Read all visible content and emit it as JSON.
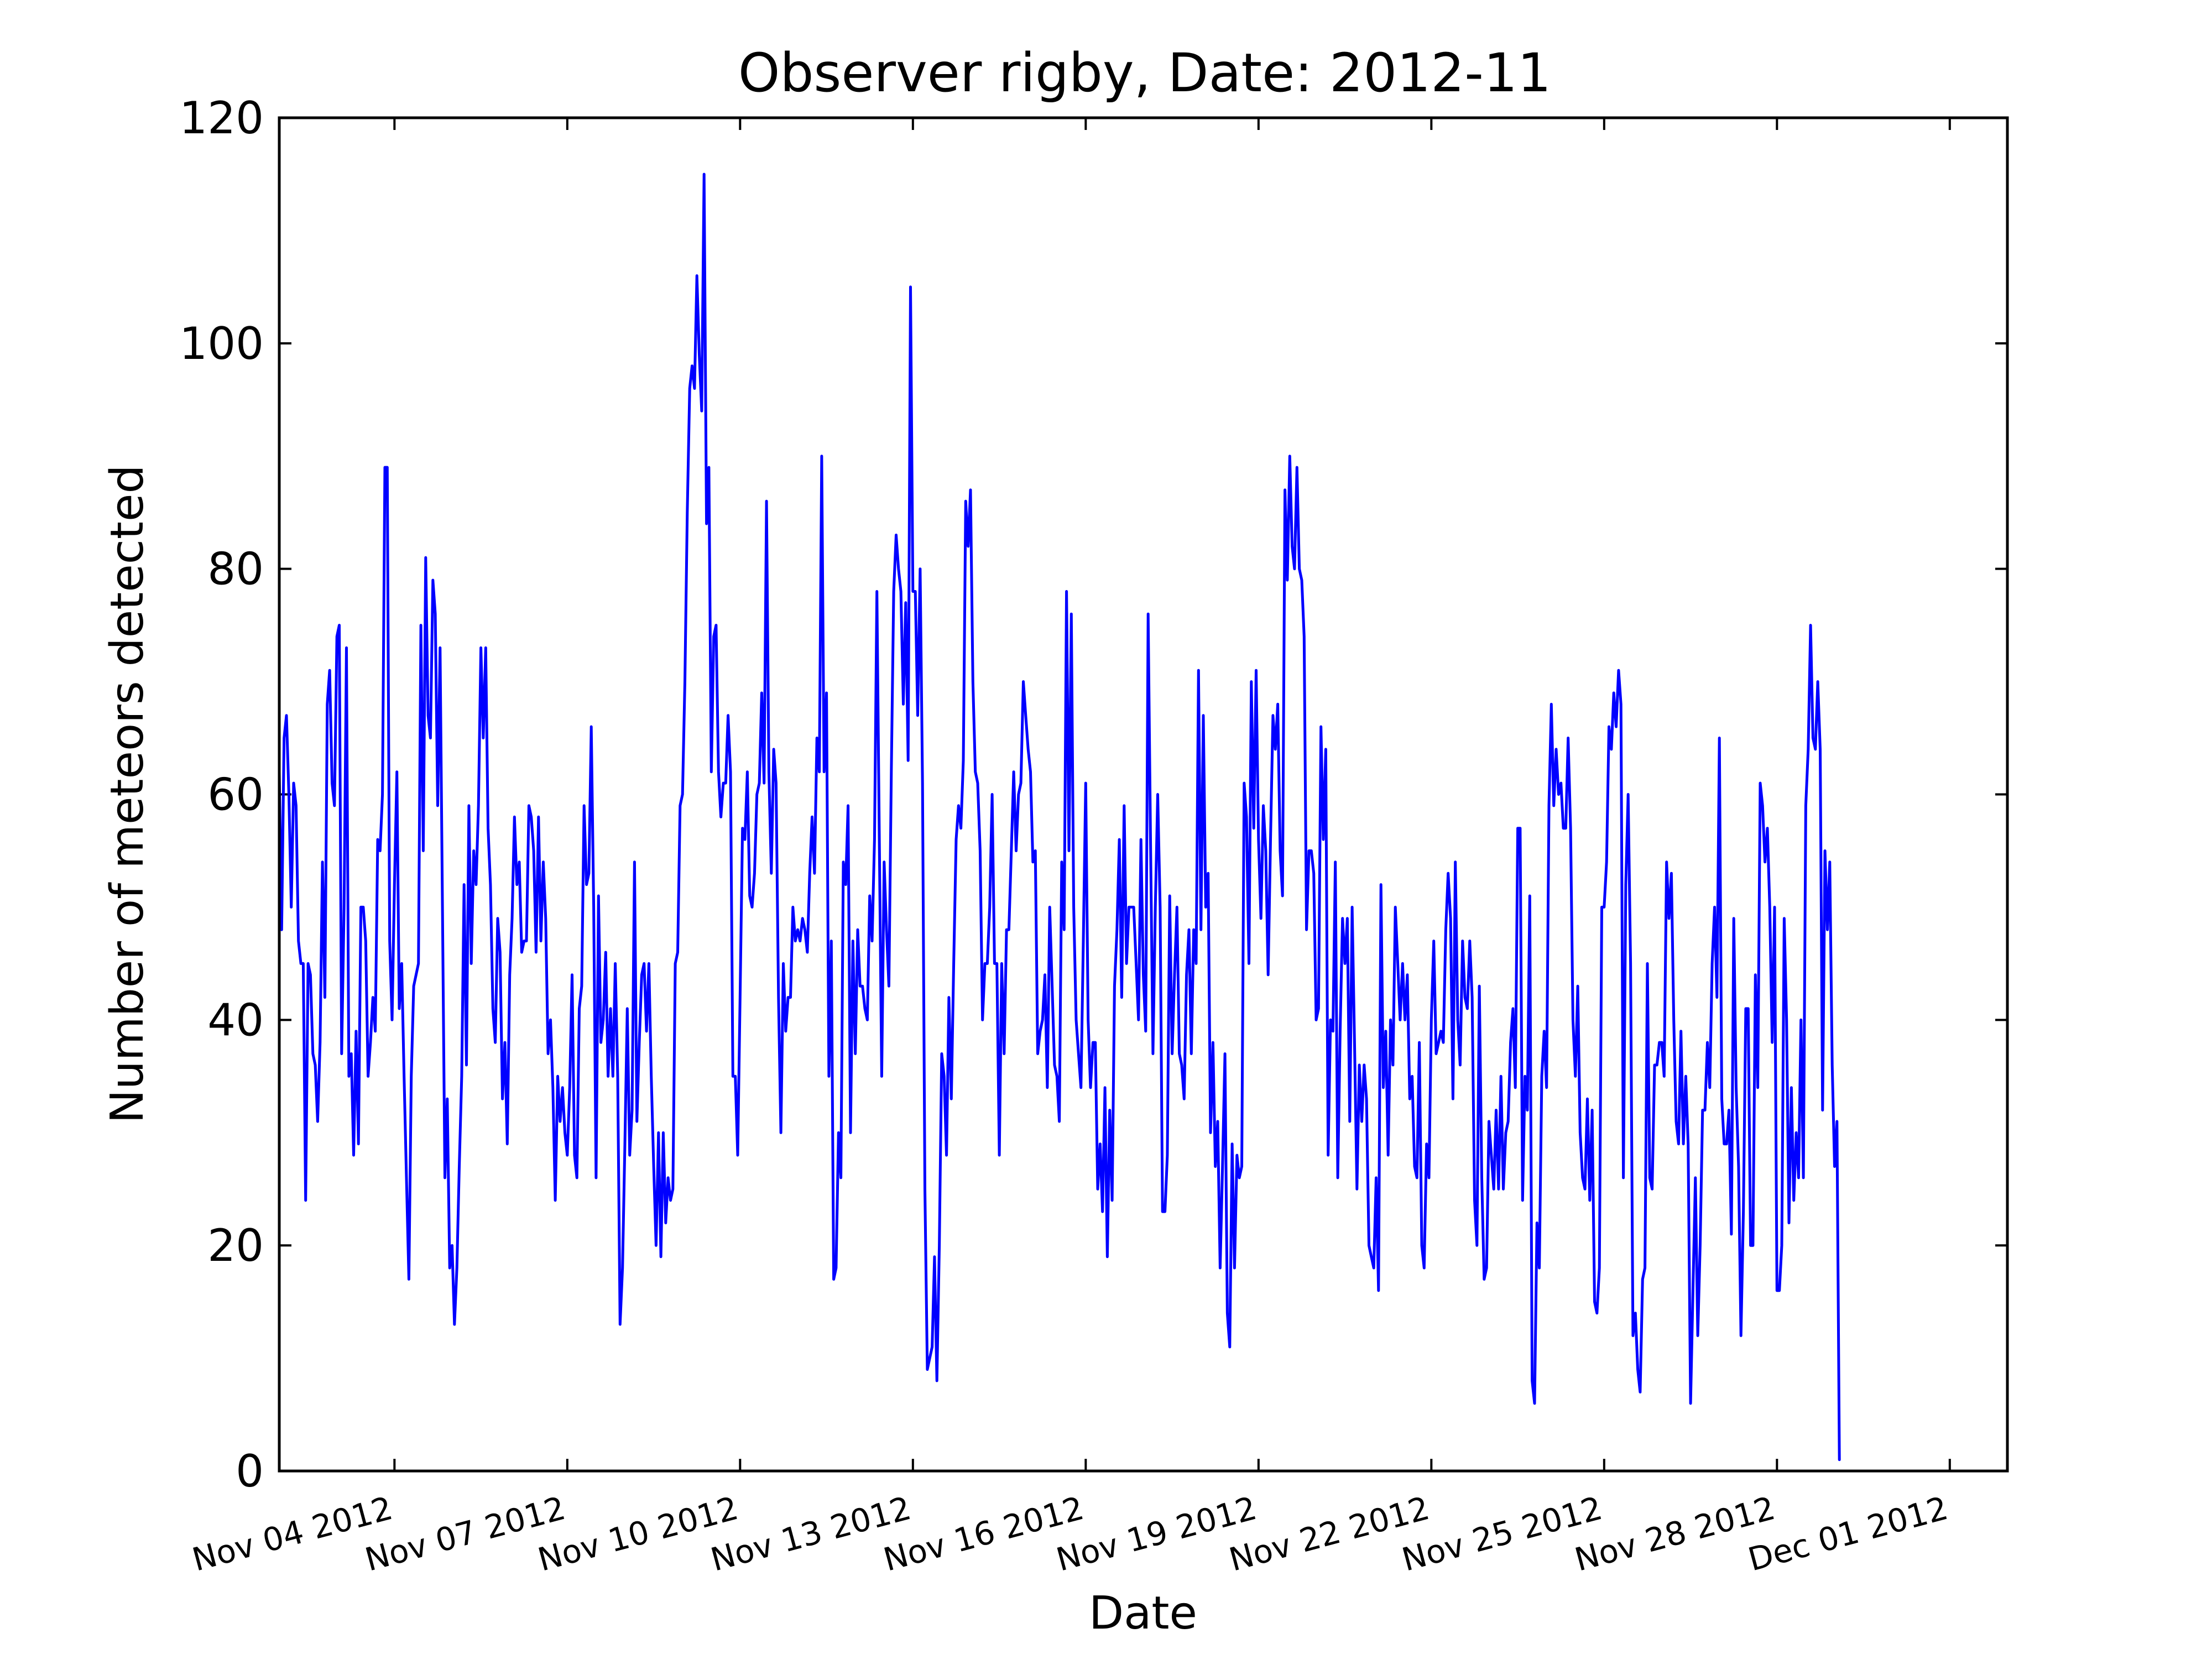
{
  "chart_data": {
    "type": "line",
    "title": "Observer rigby, Date: 2012-11",
    "xlabel": "Date",
    "ylabel": "Number of meteors detected",
    "xlim": [
      "2012-11-02 00:00",
      "2012-12-02 00:00"
    ],
    "ylim": [
      0,
      120
    ],
    "grid": false,
    "y_ticks": [
      0,
      20,
      40,
      60,
      80,
      100,
      120
    ],
    "x_ticks": [
      {
        "date": "2012-11-04",
        "label": "Nov 04 2012"
      },
      {
        "date": "2012-11-07",
        "label": "Nov 07 2012"
      },
      {
        "date": "2012-11-10",
        "label": "Nov 10 2012"
      },
      {
        "date": "2012-11-13",
        "label": "Nov 13 2012"
      },
      {
        "date": "2012-11-16",
        "label": "Nov 16 2012"
      },
      {
        "date": "2012-11-19",
        "label": "Nov 19 2012"
      },
      {
        "date": "2012-11-22",
        "label": "Nov 22 2012"
      },
      {
        "date": "2012-11-25",
        "label": "Nov 25 2012"
      },
      {
        "date": "2012-11-28",
        "label": "Nov 28 2012"
      },
      {
        "date": "2012-12-01",
        "label": "Dec 01 2012"
      }
    ],
    "series": [
      {
        "color": "#0000ff",
        "start": "2012-11-02 00:00",
        "step_hours": 1,
        "values": [
          62,
          48,
          65,
          67,
          60,
          50,
          61,
          59,
          47,
          45,
          45,
          24,
          45,
          44,
          37,
          36,
          31,
          38,
          54,
          42,
          68,
          71,
          61,
          59,
          74,
          75,
          37,
          50,
          73,
          35,
          37,
          28,
          39,
          29,
          50,
          50,
          47,
          35,
          38,
          42,
          39,
          56,
          55,
          60,
          89,
          89,
          47,
          40,
          52,
          62,
          41,
          45,
          35,
          26,
          17,
          35,
          43,
          44,
          45,
          75,
          55,
          81,
          67,
          65,
          79,
          76,
          59,
          73,
          50,
          26,
          33,
          18,
          20,
          13,
          18,
          27,
          35,
          52,
          36,
          59,
          45,
          55,
          52,
          59,
          73,
          65,
          73,
          57,
          52,
          41,
          38,
          49,
          46,
          33,
          38,
          29,
          44,
          49,
          58,
          52,
          54,
          46,
          47,
          47,
          59,
          58,
          55,
          46,
          58,
          47,
          54,
          49,
          37,
          40,
          34,
          24,
          35,
          31,
          34,
          30,
          28,
          34,
          44,
          28,
          26,
          41,
          43,
          59,
          52,
          53,
          66,
          50,
          26,
          51,
          38,
          40,
          46,
          35,
          41,
          35,
          45,
          35,
          13,
          18,
          29,
          41,
          28,
          32,
          54,
          31,
          38,
          44,
          45,
          39,
          45,
          35,
          27,
          20,
          30,
          19,
          30,
          22,
          26,
          24,
          25,
          45,
          46,
          59,
          60,
          70,
          85,
          96,
          98,
          96,
          106,
          99,
          94,
          115,
          84,
          89,
          62,
          74,
          75,
          62,
          58,
          61,
          61,
          67,
          62,
          35,
          35,
          28,
          42,
          57,
          56,
          62,
          51,
          50,
          53,
          60,
          61,
          69,
          61,
          86,
          62,
          53,
          64,
          61,
          42,
          30,
          45,
          39,
          42,
          42,
          50,
          47,
          48,
          47,
          49,
          48,
          46,
          53,
          58,
          53,
          65,
          62,
          90,
          62,
          69,
          35,
          47,
          17,
          18,
          30,
          26,
          54,
          52,
          59,
          30,
          47,
          37,
          48,
          43,
          43,
          41,
          40,
          51,
          47,
          56,
          78,
          56,
          35,
          54,
          48,
          43,
          62,
          78,
          83,
          80,
          78,
          68,
          77,
          63,
          105,
          78,
          78,
          67,
          80,
          61,
          25,
          9,
          10,
          11,
          19,
          8,
          20,
          37,
          35,
          28,
          42,
          33,
          45,
          56,
          59,
          57,
          63,
          86,
          82,
          87,
          70,
          62,
          61,
          55,
          40,
          45,
          45,
          50,
          60,
          45,
          45,
          28,
          45,
          37,
          48,
          48,
          55,
          62,
          55,
          60,
          61,
          70,
          67,
          64,
          62,
          54,
          55,
          37,
          39,
          40,
          44,
          34,
          50,
          43,
          36,
          35,
          31,
          54,
          48,
          78,
          55,
          76,
          50,
          40,
          37,
          34,
          47,
          61,
          40,
          34,
          38,
          38,
          25,
          29,
          23,
          34,
          19,
          32,
          24,
          43,
          48,
          56,
          42,
          59,
          45,
          50,
          50,
          50,
          45,
          40,
          56,
          44,
          39,
          76,
          56,
          37,
          50,
          60,
          50,
          23,
          23,
          28,
          51,
          37,
          44,
          50,
          37,
          36,
          33,
          44,
          48,
          37,
          48,
          45,
          71,
          48,
          67,
          50,
          53,
          30,
          38,
          27,
          31,
          18,
          27,
          37,
          14,
          11,
          29,
          18,
          28,
          26,
          27,
          61,
          58,
          45,
          70,
          57,
          71,
          56,
          49,
          59,
          55,
          44,
          56,
          67,
          64,
          68,
          55,
          51,
          87,
          79,
          90,
          82,
          80,
          89,
          80,
          79,
          74,
          48,
          55,
          55,
          53,
          40,
          41,
          66,
          56,
          64,
          28,
          40,
          39,
          54,
          26,
          39,
          49,
          45,
          49,
          31,
          50,
          38,
          25,
          36,
          31,
          36,
          33,
          20,
          19,
          18,
          26,
          16,
          52,
          34,
          39,
          28,
          40,
          36,
          50,
          45,
          40,
          45,
          40,
          44,
          33,
          35,
          27,
          26,
          38,
          20,
          18,
          29,
          26,
          40,
          47,
          37,
          38,
          39,
          38,
          48,
          53,
          49,
          33,
          54,
          40,
          36,
          47,
          42,
          41,
          47,
          42,
          24,
          20,
          43,
          26,
          17,
          18,
          31,
          28,
          25,
          32,
          25,
          35,
          25,
          30,
          31,
          38,
          41,
          34,
          57,
          57,
          24,
          35,
          32,
          51,
          8,
          6,
          22,
          18,
          35,
          39,
          34,
          59,
          68,
          59,
          64,
          60,
          61,
          57,
          57,
          65,
          57,
          40,
          35,
          43,
          30,
          26,
          25,
          33,
          24,
          32,
          15,
          14,
          18,
          50,
          50,
          54,
          66,
          64,
          69,
          66,
          71,
          68,
          26,
          52,
          60,
          45,
          12,
          14,
          9,
          7,
          17,
          18,
          45,
          26,
          25,
          36,
          36,
          38,
          38,
          35,
          54,
          49,
          53,
          40,
          31,
          29,
          39,
          29,
          35,
          29,
          6,
          16,
          26,
          12,
          20,
          32,
          32,
          38,
          34,
          45,
          50,
          42,
          65,
          33,
          29,
          29,
          32,
          21,
          49,
          34,
          27,
          12,
          23,
          41,
          41,
          20,
          20,
          44,
          34,
          61,
          59,
          54,
          57,
          50,
          38,
          50,
          16,
          16,
          20,
          49,
          40,
          22,
          34,
          24,
          30,
          26,
          40,
          26,
          59,
          64,
          75,
          65,
          64,
          70,
          64,
          32,
          55,
          48,
          54,
          36,
          27,
          31,
          1
        ]
      }
    ]
  }
}
